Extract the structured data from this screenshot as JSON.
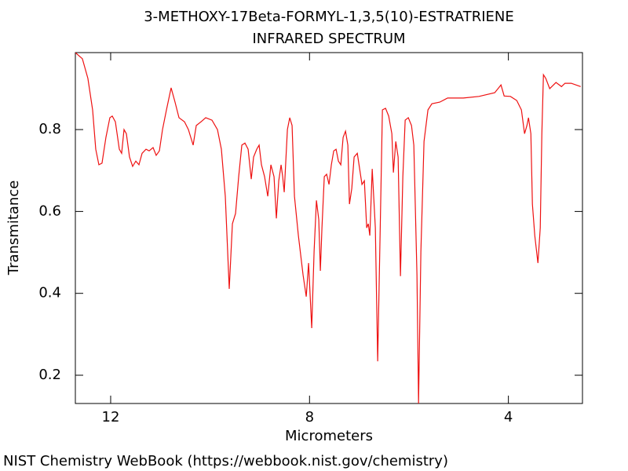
{
  "chart_data": {
    "type": "line",
    "title": "3-METHOXY-17Beta-FORMYL-1,3,5(10)-ESTRATRIENE",
    "subtitle": "INFRARED SPECTRUM",
    "x_label": "Micrometers",
    "y_label": "Transmitance",
    "source": "NIST Chemistry WebBook (https://webbook.nist.gov/chemistry)",
    "xlim": [
      12.71,
      2.51
    ],
    "ylim": [
      0.131,
      0.988
    ],
    "xticks": [
      12,
      8,
      4
    ],
    "yticks": [
      0.2,
      0.4,
      0.6,
      0.8
    ],
    "series": [
      {
        "color": "#ee1111",
        "x": [
          12.711,
          12.569,
          12.458,
          12.363,
          12.3,
          12.237,
          12.174,
          12.095,
          12.016,
          11.968,
          11.905,
          11.826,
          11.779,
          11.731,
          11.684,
          11.621,
          11.558,
          11.494,
          11.431,
          11.368,
          11.289,
          11.226,
          11.147,
          11.084,
          11.02,
          10.957,
          10.878,
          10.784,
          10.705,
          10.626,
          10.515,
          10.436,
          10.341,
          10.278,
          10.183,
          10.088,
          9.962,
          9.852,
          9.773,
          9.694,
          9.615,
          9.551,
          9.488,
          9.425,
          9.362,
          9.299,
          9.235,
          9.172,
          9.125,
          9.062,
          9.014,
          8.967,
          8.904,
          8.84,
          8.777,
          8.714,
          8.667,
          8.619,
          8.572,
          8.54,
          8.509,
          8.445,
          8.398,
          8.351,
          8.303,
          8.224,
          8.13,
          8.066,
          8.019,
          7.956,
          7.908,
          7.861,
          7.814,
          7.782,
          7.75,
          7.703,
          7.656,
          7.608,
          7.561,
          7.513,
          7.466,
          7.419,
          7.371,
          7.324,
          7.276,
          7.229,
          7.197,
          7.15,
          7.103,
          7.039,
          6.992,
          6.945,
          6.897,
          6.85,
          6.818,
          6.787,
          6.739,
          6.676,
          6.629,
          6.581,
          6.534,
          6.471,
          6.408,
          6.344,
          6.313,
          6.265,
          6.218,
          6.171,
          6.123,
          6.076,
          6.013,
          5.949,
          5.902,
          5.839,
          5.807,
          5.76,
          5.697,
          5.618,
          5.539,
          5.381,
          5.223,
          4.907,
          4.591,
          4.275,
          4.149,
          4.085,
          3.959,
          3.832,
          3.738,
          3.675,
          3.627,
          3.596,
          3.548,
          3.517,
          3.469,
          3.406,
          3.359,
          3.327,
          3.295,
          3.248,
          3.169,
          3.043,
          2.932,
          2.862,
          2.736,
          2.546
        ],
        "values": [
          0.988,
          0.973,
          0.925,
          0.848,
          0.752,
          0.714,
          0.718,
          0.781,
          0.829,
          0.833,
          0.819,
          0.752,
          0.742,
          0.8,
          0.79,
          0.733,
          0.71,
          0.723,
          0.714,
          0.742,
          0.752,
          0.748,
          0.756,
          0.737,
          0.748,
          0.8,
          0.848,
          0.902,
          0.867,
          0.829,
          0.819,
          0.8,
          0.762,
          0.81,
          0.819,
          0.829,
          0.823,
          0.8,
          0.752,
          0.637,
          0.411,
          0.57,
          0.595,
          0.685,
          0.762,
          0.767,
          0.752,
          0.679,
          0.733,
          0.752,
          0.762,
          0.714,
          0.685,
          0.637,
          0.714,
          0.685,
          0.583,
          0.675,
          0.714,
          0.685,
          0.647,
          0.8,
          0.829,
          0.81,
          0.637,
          0.541,
          0.445,
          0.392,
          0.474,
          0.315,
          0.503,
          0.627,
          0.58,
          0.455,
          0.56,
          0.685,
          0.691,
          0.666,
          0.714,
          0.748,
          0.752,
          0.723,
          0.714,
          0.781,
          0.796,
          0.762,
          0.618,
          0.656,
          0.733,
          0.742,
          0.704,
          0.666,
          0.675,
          0.56,
          0.57,
          0.541,
          0.704,
          0.56,
          0.234,
          0.541,
          0.848,
          0.852,
          0.833,
          0.79,
          0.695,
          0.771,
          0.733,
          0.442,
          0.685,
          0.823,
          0.829,
          0.81,
          0.762,
          0.445,
          0.131,
          0.503,
          0.771,
          0.848,
          0.863,
          0.867,
          0.877,
          0.877,
          0.881,
          0.89,
          0.909,
          0.882,
          0.881,
          0.871,
          0.848,
          0.79,
          0.81,
          0.829,
          0.79,
          0.618,
          0.541,
          0.474,
          0.56,
          0.79,
          0.934,
          0.925,
          0.9,
          0.915,
          0.905,
          0.913,
          0.913,
          0.905
        ]
      }
    ]
  }
}
